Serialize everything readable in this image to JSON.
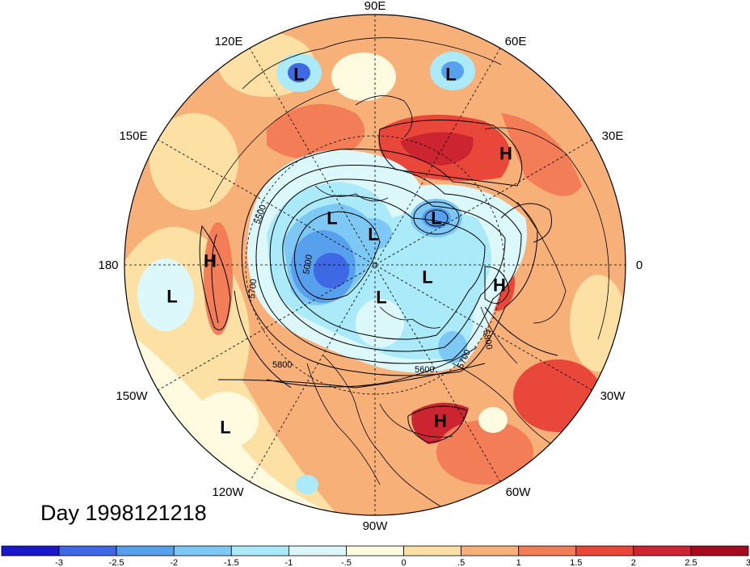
{
  "map": {
    "lon_labels": [
      {
        "key": "e90",
        "text": "90E"
      },
      {
        "key": "e60",
        "text": "60E"
      },
      {
        "key": "e30",
        "text": "30E"
      },
      {
        "key": "zero",
        "text": "0"
      },
      {
        "key": "w30",
        "text": "30W"
      },
      {
        "key": "w60",
        "text": "60W"
      },
      {
        "key": "w90",
        "text": "90W"
      },
      {
        "key": "w120",
        "text": "120W"
      },
      {
        "key": "w150",
        "text": "150W"
      },
      {
        "key": "d180",
        "text": "180"
      },
      {
        "key": "e150",
        "text": "150E"
      },
      {
        "key": "e120",
        "text": "120E"
      }
    ],
    "pressure_centers": [
      {
        "type": "L",
        "key": "l1"
      },
      {
        "type": "L",
        "key": "l2"
      },
      {
        "type": "H",
        "key": "h1"
      },
      {
        "type": "L",
        "key": "l3"
      },
      {
        "type": "L",
        "key": "l4"
      },
      {
        "type": "L",
        "key": "l5"
      },
      {
        "type": "H",
        "key": "h2"
      },
      {
        "type": "H",
        "key": "h3"
      },
      {
        "type": "L",
        "key": "l6"
      },
      {
        "type": "L",
        "key": "l7"
      },
      {
        "type": "L",
        "key": "l8"
      },
      {
        "type": "H",
        "key": "h4"
      },
      {
        "type": "L",
        "key": "l9"
      }
    ],
    "contour_labels": [
      "5500",
      "5000",
      "5700",
      "5800",
      "5600",
      "5700",
      "5800"
    ]
  },
  "title": {
    "day": "Day 1998121218"
  },
  "colorbar": {
    "colors": [
      "#1a17c9",
      "#3f68e4",
      "#57a0ee",
      "#7ec8f5",
      "#aaeaf9",
      "#dcf8fb",
      "#fffbe1",
      "#fde0a3",
      "#f8b079",
      "#f27d56",
      "#e94739",
      "#cc2430",
      "#a40b1d"
    ],
    "ticks": [
      "-3",
      "-2.5",
      "-2",
      "-1.5",
      "-1",
      "-.5",
      "0",
      ".5",
      "1",
      "1.5",
      "2",
      "2.5",
      "3"
    ]
  }
}
